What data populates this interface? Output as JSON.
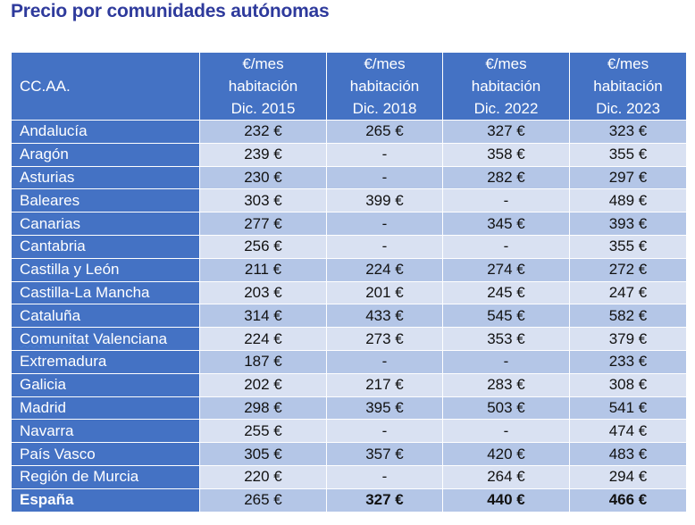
{
  "title": "Precio por comunidades autónomas",
  "table": {
    "headers": [
      [
        "CC.AA."
      ],
      [
        "€/mes",
        "habitación",
        "Dic. 2015"
      ],
      [
        "€/mes",
        "habitación",
        "Dic.  2018"
      ],
      [
        "€/mes",
        "habitación",
        "Dic.  2022"
      ],
      [
        "€/mes",
        "habitación",
        "Dic.  2023"
      ]
    ],
    "rows": [
      {
        "region": "Andalucía",
        "values": [
          "232 €",
          "265 €",
          "327 €",
          "323 €"
        ]
      },
      {
        "region": "Aragón",
        "values": [
          "239 €",
          "-",
          "358 €",
          "355 €"
        ]
      },
      {
        "region": "Asturias",
        "values": [
          "230 €",
          "-",
          "282 €",
          "297 €"
        ]
      },
      {
        "region": "Baleares",
        "values": [
          "303 €",
          "399 €",
          "-",
          "489 €"
        ]
      },
      {
        "region": "Canarias",
        "values": [
          "277 €",
          "-",
          "345 €",
          "393 €"
        ]
      },
      {
        "region": "Cantabria",
        "values": [
          "256 €",
          "-",
          "-",
          "355 €"
        ]
      },
      {
        "region": "Castilla y León",
        "values": [
          "211 €",
          "224 €",
          "274 €",
          "272 €"
        ]
      },
      {
        "region": "Castilla-La Mancha",
        "values": [
          "203 €",
          "201 €",
          "245 €",
          "247 €"
        ]
      },
      {
        "region": "Cataluña",
        "values": [
          "314 €",
          "433 €",
          "545 €",
          "582 €"
        ]
      },
      {
        "region": "Comunitat Valenciana",
        "values": [
          "224 €",
          "273 €",
          "353 €",
          "379 €"
        ]
      },
      {
        "region": "Extremadura",
        "values": [
          "187 €",
          "-",
          "-",
          "233 €"
        ]
      },
      {
        "region": "Galicia",
        "values": [
          "202 €",
          "217 €",
          "283 €",
          "308 €"
        ]
      },
      {
        "region": "Madrid",
        "values": [
          "298 €",
          "395 €",
          "503 €",
          "541 €"
        ]
      },
      {
        "region": "Navarra",
        "values": [
          "255 €",
          "-",
          "-",
          "474 €"
        ]
      },
      {
        "region": "País Vasco",
        "values": [
          "305 €",
          "357 €",
          "420 €",
          "483 €"
        ]
      },
      {
        "region": "Región de Murcia",
        "values": [
          "220 €",
          "-",
          "264 €",
          "294 €"
        ]
      }
    ],
    "total": {
      "region": "España",
      "values": [
        "265 €",
        "327 €",
        "440 €",
        "466 €"
      ]
    }
  },
  "colors": {
    "header": "#4472c4",
    "row_dark": "#b4c6e7",
    "row_light": "#d9e1f2",
    "title": "#2e3a9c"
  }
}
